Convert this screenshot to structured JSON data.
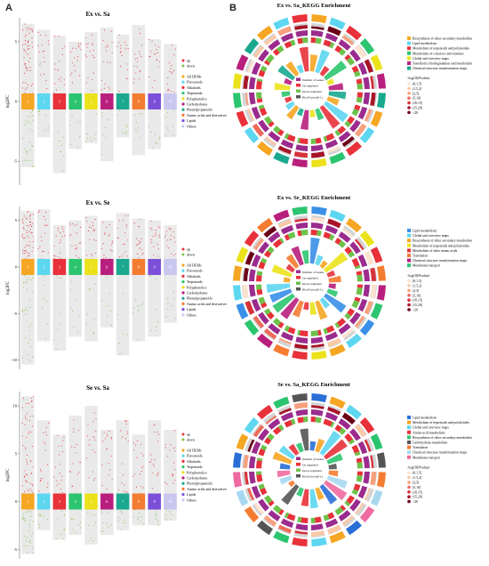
{
  "panels": {
    "a": "A",
    "b": "B"
  },
  "volcano": {
    "ylabel": "log2FC",
    "legend_direction": [
      {
        "label": "up",
        "color": "#e8313a"
      },
      {
        "label": "down",
        "color": "#7dc242"
      }
    ],
    "categories": [
      {
        "label": "All DEMs",
        "color": "#f5a623"
      },
      {
        "label": "Flavonoids",
        "color": "#5dd6f0"
      },
      {
        "label": "Alkaloids",
        "color": "#e8313a"
      },
      {
        "label": "Terpenoids",
        "color": "#2cc56f"
      },
      {
        "label": "Polyphenolics",
        "color": "#ebe21b"
      },
      {
        "label": "Carbohydrates",
        "color": "#b81f7c"
      },
      {
        "label": "Phenylpropanoids",
        "color": "#1aa88e"
      },
      {
        "label": "Amino acids and derivatives",
        "color": "#f47c30"
      },
      {
        "label": "Lipids",
        "color": "#7b4fd8"
      },
      {
        "label": "Others",
        "color": "#c9c6ef"
      }
    ],
    "charts": [
      {
        "title": "Ex vs. Sa",
        "labels": [
          "1",
          "2",
          "3",
          "4",
          "5",
          "6",
          "7",
          "8",
          "9",
          "10"
        ],
        "ticks": [
          "5",
          "0",
          "-5"
        ],
        "ylim": [
          -7,
          7
        ]
      },
      {
        "title": "Ex vs. Se",
        "labels": [
          "1",
          "2",
          "3",
          "4",
          "5",
          "6",
          "7",
          "8",
          "9",
          "10"
        ],
        "ticks": [
          "5",
          "0",
          "-5",
          "-10"
        ],
        "ylim": [
          -11,
          6.5
        ]
      },
      {
        "title": "Se vs. Sa",
        "labels": [
          "1",
          "2",
          "3",
          "4",
          "5",
          "6",
          "7",
          "8",
          "9",
          "10"
        ],
        "ticks": [
          "10",
          "5",
          "0",
          "-5"
        ],
        "ylim": [
          -6,
          11.5
        ]
      }
    ]
  },
  "circos": {
    "center_legend": [
      "Number of Genes",
      "Up regulated",
      "Down regulated",
      "Rich Factor(0-1)"
    ],
    "pvalue_title": "-log10(Pvalue)",
    "pvalue_bins": [
      {
        "label": "(0,1.5]",
        "color": "#fde3cf"
      },
      {
        "label": "(1.5,2]",
        "color": "#fbc9a8"
      },
      {
        "label": "(2,5]",
        "color": "#f7a07e"
      },
      {
        "label": "(5,10]",
        "color": "#ef6b5a"
      },
      {
        "label": "(10,15]",
        "color": "#d7323b"
      },
      {
        "label": "(15,20]",
        "color": "#a81428"
      },
      {
        "label": ">20",
        "color": "#6b0019"
      }
    ],
    "charts": [
      {
        "title": "Ex vs. Sa_KEGG Enrichment",
        "pathways": [
          {
            "label": "Biosynthesis of other secondary metabolites",
            "color": "#f5a623"
          },
          {
            "label": "Lipid metabolism",
            "color": "#5dd6f0"
          },
          {
            "label": "Metabolism of terpenoids and polyketides",
            "color": "#e8313a"
          },
          {
            "label": "Metabolism of cofactors and vitamins",
            "color": "#2cc56f"
          },
          {
            "label": "Global and overview maps",
            "color": "#ebe21b"
          },
          {
            "label": "Xenobiotics biodegradation and metabolism",
            "color": "#b81f7c"
          },
          {
            "label": "Chemical structure transformation maps",
            "color": "#1aa88e"
          }
        ]
      },
      {
        "title": "Ex vs. Se_KEGG Enrichment",
        "pathways": [
          {
            "label": "Lipid metabolism",
            "color": "#3a8fe8"
          },
          {
            "label": "Global and overview maps",
            "color": "#5dd6f0"
          },
          {
            "label": "Biosynthesis of other secondary metabolites",
            "color": "#f5a623"
          },
          {
            "label": "Metabolism of terpenoids and polyketides",
            "color": "#ebe21b"
          },
          {
            "label": "Metabolism of other amino acids",
            "color": "#e8313a"
          },
          {
            "label": "Translation",
            "color": "#f47c30"
          },
          {
            "label": "Chemical structure transformation maps",
            "color": "#b81f7c"
          },
          {
            "label": "Membrane transport",
            "color": "#2cc56f"
          }
        ]
      },
      {
        "title": "Se vs. Sa_KEGG Enrichment",
        "pathways": [
          {
            "label": "Lipid metabolism",
            "color": "#2a6fd6"
          },
          {
            "label": "Metabolism of terpenoids and polyketides",
            "color": "#f5a623"
          },
          {
            "label": "Global and overview maps",
            "color": "#5dd6f0"
          },
          {
            "label": "Amino acid metabolism",
            "color": "#e8313a"
          },
          {
            "label": "Biosynthesis of other secondary metabolites",
            "color": "#2cc56f"
          },
          {
            "label": "Carbohydrate metabolism",
            "color": "#555555"
          },
          {
            "label": "Translation",
            "color": "#f47c30"
          },
          {
            "label": "Chemical structure transformation maps",
            "color": "#a7d8ef"
          },
          {
            "label": "Membrane transport",
            "color": "#ef6aa0"
          }
        ]
      }
    ]
  },
  "chart_data": [
    {
      "type": "scatter",
      "title": "Ex vs. Sa",
      "ylabel": "log2FC",
      "categories": [
        "1",
        "2",
        "3",
        "4",
        "5",
        "6",
        "7",
        "8",
        "9",
        "10"
      ],
      "ylim": [
        -7,
        7
      ],
      "series": [
        {
          "name": "up",
          "values": [
            6.5,
            6.0,
            5.5,
            5.0,
            5.8,
            6.2,
            5.6,
            6.4,
            5.2,
            4.8
          ]
        },
        {
          "name": "down",
          "values": [
            -5.5,
            -3.0,
            -6.0,
            -4.0,
            -3.5,
            -5.0,
            -3.0,
            -4.5,
            -4.0,
            -3.0
          ]
        }
      ]
    },
    {
      "type": "scatter",
      "title": "Ex vs. Se",
      "ylabel": "log2FC",
      "categories": [
        "1",
        "2",
        "3",
        "4",
        "5",
        "6",
        "7",
        "8",
        "9",
        "10"
      ],
      "ylim": [
        -11,
        6.5
      ],
      "series": [
        {
          "name": "up",
          "values": [
            6.0,
            6.2,
            4.5,
            5.0,
            5.5,
            5.0,
            5.8,
            5.2,
            5.0,
            4.5
          ]
        },
        {
          "name": "down",
          "values": [
            -10.5,
            -8.0,
            -9.0,
            -7.5,
            -8.0,
            -6.5,
            -9.5,
            -8.0,
            -7.5,
            -6.0
          ]
        }
      ]
    },
    {
      "type": "scatter",
      "title": "Se vs. Sa",
      "ylabel": "log2FC",
      "categories": [
        "1",
        "2",
        "3",
        "4",
        "5",
        "6",
        "7",
        "8",
        "9",
        "10"
      ],
      "ylim": [
        -6,
        11.5
      ],
      "series": [
        {
          "name": "up",
          "values": [
            11.0,
            8.5,
            7.0,
            9.0,
            10.0,
            7.5,
            8.5,
            7.0,
            8.5,
            7.5
          ]
        },
        {
          "name": "down",
          "values": [
            -5.5,
            -3.0,
            -4.0,
            -3.5,
            -4.5,
            -3.5,
            -3.0,
            -2.5,
            -2.5,
            -2.0
          ]
        }
      ]
    }
  ]
}
